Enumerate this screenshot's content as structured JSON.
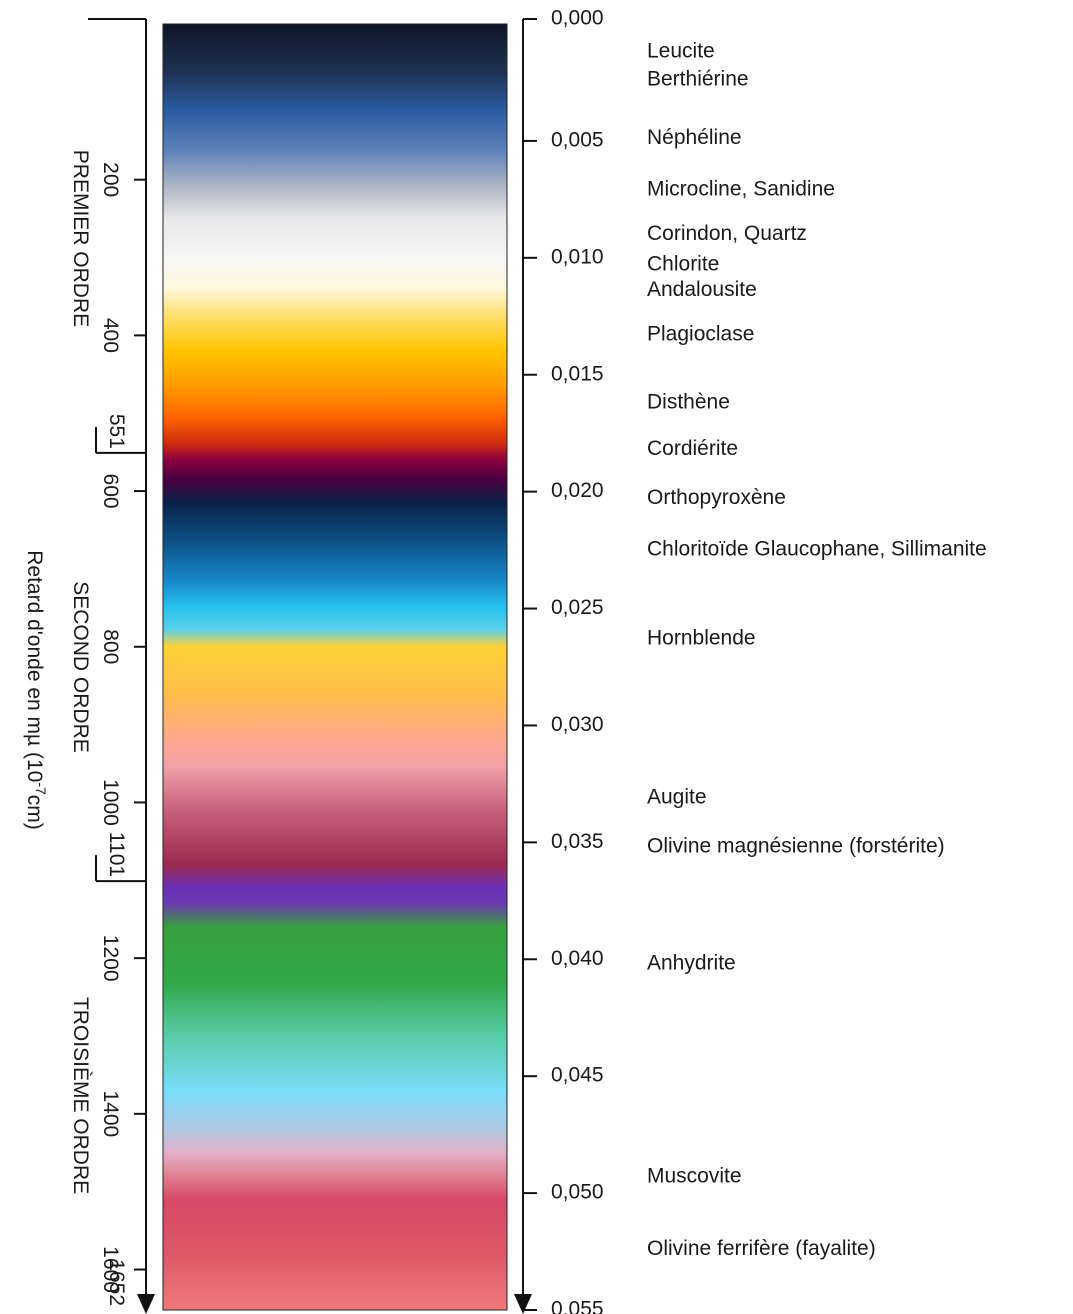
{
  "chart_data": {
    "type": "diagram",
    "axis_title": "Retard d'onde en mµ (10",
    "axis_title_exp": "-7",
    "axis_title_unit": "cm)",
    "retardation_range": [
      0,
      1652
    ],
    "birefringence_range": [
      0,
      0.055
    ],
    "retardation_ticks": [
      {
        "value": 200,
        "label": "200"
      },
      {
        "value": 400,
        "label": "400"
      },
      {
        "value": 600,
        "label": "600"
      },
      {
        "value": 800,
        "label": "800"
      },
      {
        "value": 1000,
        "label": "1000"
      },
      {
        "value": 1200,
        "label": "1200"
      },
      {
        "value": 1400,
        "label": "1400"
      },
      {
        "value": 1600,
        "label": "1600"
      }
    ],
    "order_boundaries": [
      {
        "value": 551,
        "label": "551"
      },
      {
        "value": 1101,
        "label": "1101"
      },
      {
        "value": 1652,
        "label": "1652"
      }
    ],
    "orders": [
      {
        "name": "PREMIER ORDRE",
        "from": 0,
        "to": 551
      },
      {
        "name": "SECOND ORDRE",
        "from": 551,
        "to": 1101
      },
      {
        "name": "TROISIÈME ORDRE",
        "from": 1101,
        "to": 1652
      }
    ],
    "birefringence_ticks": [
      {
        "value": 0.0,
        "label": "0,000"
      },
      {
        "value": 0.005,
        "label": "0,005"
      },
      {
        "value": 0.01,
        "label": "0,010"
      },
      {
        "value": 0.015,
        "label": "0,015"
      },
      {
        "value": 0.02,
        "label": "0,020"
      },
      {
        "value": 0.025,
        "label": "0,025"
      },
      {
        "value": 0.03,
        "label": "0,030"
      },
      {
        "value": 0.035,
        "label": "0,035"
      },
      {
        "value": 0.04,
        "label": "0,040"
      },
      {
        "value": 0.045,
        "label": "0,045"
      },
      {
        "value": 0.05,
        "label": "0,050"
      },
      {
        "value": 0.055,
        "label": "0,055"
      }
    ],
    "minerals": [
      {
        "name": "Leucite",
        "birefringence": 0.0012
      },
      {
        "name": "Berthiérine",
        "birefringence": 0.0024
      },
      {
        "name": "Néphéline",
        "birefringence": 0.0049
      },
      {
        "name": "Microcline, Sanidine",
        "birefringence": 0.0071
      },
      {
        "name": "Corindon, Quartz",
        "birefringence": 0.009
      },
      {
        "name": "Chlorite",
        "birefringence": 0.0103
      },
      {
        "name": "Andalousite",
        "birefringence": 0.0114
      },
      {
        "name": "Plagioclase",
        "birefringence": 0.0133
      },
      {
        "name": "Disthène",
        "birefringence": 0.0162
      },
      {
        "name": "Cordiérite",
        "birefringence": 0.0182
      },
      {
        "name": "Orthopyroxène",
        "birefringence": 0.0203
      },
      {
        "name": "Chloritoïde Glaucophane, Sillimanite",
        "birefringence": 0.0225
      },
      {
        "name": "Hornblende",
        "birefringence": 0.0263
      },
      {
        "name": "Augite",
        "birefringence": 0.0331
      },
      {
        "name": "Olivine magnésienne (forstérite)",
        "birefringence": 0.0352
      },
      {
        "name": "Anhydrite",
        "birefringence": 0.0402
      },
      {
        "name": "Muscovite",
        "birefringence": 0.0493
      },
      {
        "name": "Olivine ferrifère (fayalite)",
        "birefringence": 0.0524
      }
    ],
    "color_stops": [
      {
        "retardation": 0,
        "color": "#0d1526"
      },
      {
        "retardation": 60,
        "color": "#1e3050"
      },
      {
        "retardation": 110,
        "color": "#2a5ba0"
      },
      {
        "retardation": 160,
        "color": "#5a7fb8"
      },
      {
        "retardation": 210,
        "color": "#b0b8c6"
      },
      {
        "retardation": 250,
        "color": "#e8e8ea"
      },
      {
        "retardation": 300,
        "color": "#f6f6f6"
      },
      {
        "retardation": 340,
        "color": "#fdf7dc"
      },
      {
        "retardation": 370,
        "color": "#ffe27a"
      },
      {
        "retardation": 420,
        "color": "#ffc400"
      },
      {
        "retardation": 465,
        "color": "#ff9a00"
      },
      {
        "retardation": 505,
        "color": "#ff6400"
      },
      {
        "retardation": 540,
        "color": "#cc2a10"
      },
      {
        "retardation": 560,
        "color": "#8a0040"
      },
      {
        "retardation": 585,
        "color": "#4a0040"
      },
      {
        "retardation": 615,
        "color": "#0a2148"
      },
      {
        "retardation": 660,
        "color": "#0c4c80"
      },
      {
        "retardation": 715,
        "color": "#1788c8"
      },
      {
        "retardation": 750,
        "color": "#27c3f0"
      },
      {
        "retardation": 778,
        "color": "#5cd0e8"
      },
      {
        "retardation": 800,
        "color": "#ffd238"
      },
      {
        "retardation": 860,
        "color": "#ffbe4a"
      },
      {
        "retardation": 920,
        "color": "#ffa890"
      },
      {
        "retardation": 955,
        "color": "#f0a0a8"
      },
      {
        "retardation": 1010,
        "color": "#c7607a"
      },
      {
        "retardation": 1080,
        "color": "#9c2a50"
      },
      {
        "retardation": 1110,
        "color": "#6a30b8"
      },
      {
        "retardation": 1130,
        "color": "#6a3ab0"
      },
      {
        "retardation": 1160,
        "color": "#38a040"
      },
      {
        "retardation": 1230,
        "color": "#30a848"
      },
      {
        "retardation": 1300,
        "color": "#58cca8"
      },
      {
        "retardation": 1370,
        "color": "#78ddf8"
      },
      {
        "retardation": 1420,
        "color": "#b0c8e4"
      },
      {
        "retardation": 1450,
        "color": "#e4b0c8"
      },
      {
        "retardation": 1480,
        "color": "#e08090"
      },
      {
        "retardation": 1510,
        "color": "#d84868"
      },
      {
        "retardation": 1580,
        "color": "#dc5868"
      },
      {
        "retardation": 1652,
        "color": "#f07a7c"
      }
    ]
  }
}
